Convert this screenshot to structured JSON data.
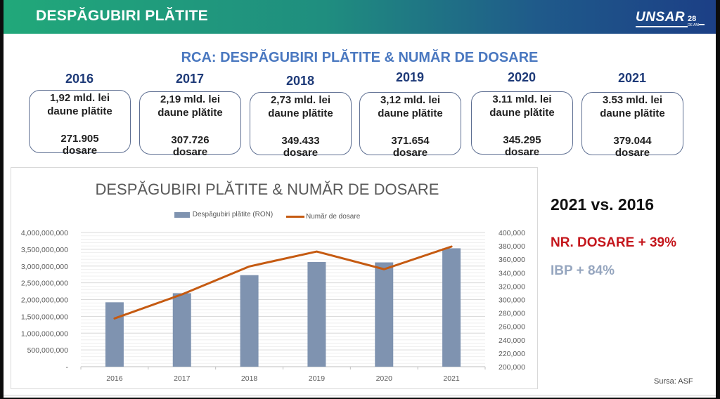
{
  "header": {
    "title": "DESPĂGUBIRI PLĂTITE",
    "logo_text": "UNSAR",
    "logo_number": "28",
    "logo_sub": "DE ANI"
  },
  "subtitle": "RCA: DESPĂGUBIRI PLĂTITE & NUMĂR DE DOSARE",
  "cards": [
    {
      "year": "2016",
      "amount": "1,92 mld. lei",
      "amount_label": "daune plătite",
      "files": "271.905",
      "files_label": "dosare"
    },
    {
      "year": "2017",
      "amount": "2,19 mld. lei",
      "amount_label": "daune plătite",
      "files": "307.726",
      "files_label": "dosare"
    },
    {
      "year": "2018",
      "amount": "2,73 mld. lei",
      "amount_label": "daune plătite",
      "files": "349.433",
      "files_label": "dosare"
    },
    {
      "year": "2019",
      "amount": "3,12 mld. lei",
      "amount_label": "daune plătite",
      "files": "371.654",
      "files_label": "dosare"
    },
    {
      "year": "2020",
      "amount": "3.11 mld. lei",
      "amount_label": "daune plătite",
      "files": "345.295",
      "files_label": "dosare"
    },
    {
      "year": "2021",
      "amount": "3.53 mld. lei",
      "amount_label": "daune plătite",
      "files": "379.044",
      "files_label": "dosare"
    }
  ],
  "comparison": {
    "title": "2021 vs. 2016",
    "files_change": "NR. DOSARE + 39%",
    "ibp_change": "IBP + 84%"
  },
  "source": "Sursa:  ASF",
  "colors": {
    "bar": "#7f93b0",
    "line": "#c55a11",
    "accent_blue": "#4a78c0",
    "accent_red": "#c4161c"
  },
  "chart_data": {
    "type": "bar+line",
    "title": "DESPĂGUBIRI PLĂTITE & NUMĂR DE DOSARE",
    "legend_position": "top",
    "grid": true,
    "categories": [
      "2016",
      "2017",
      "2018",
      "2019",
      "2020",
      "2021"
    ],
    "series": [
      {
        "name": "Despăgubiri plătite (RON)",
        "type": "bar",
        "axis": "left",
        "values": [
          1920000000,
          2190000000,
          2730000000,
          3120000000,
          3110000000,
          3530000000
        ]
      },
      {
        "name": "Număr de dosare",
        "type": "line",
        "axis": "right",
        "values": [
          271905,
          307726,
          349433,
          371654,
          345295,
          379044
        ]
      }
    ],
    "left_axis": {
      "ylim": [
        0,
        4000000000
      ],
      "ticks": [
        "-",
        "500,000,000",
        "1,000,000,000",
        "1,500,000,000",
        "2,000,000,000",
        "2,500,000,000",
        "3,000,000,000",
        "3,500,000,000",
        "4,000,000,000"
      ]
    },
    "right_axis": {
      "ylim": [
        200000,
        400000
      ],
      "ticks": [
        "200,000",
        "220,000",
        "240,000",
        "260,000",
        "280,000",
        "300,000",
        "320,000",
        "340,000",
        "360,000",
        "380,000",
        "400,000"
      ]
    }
  }
}
